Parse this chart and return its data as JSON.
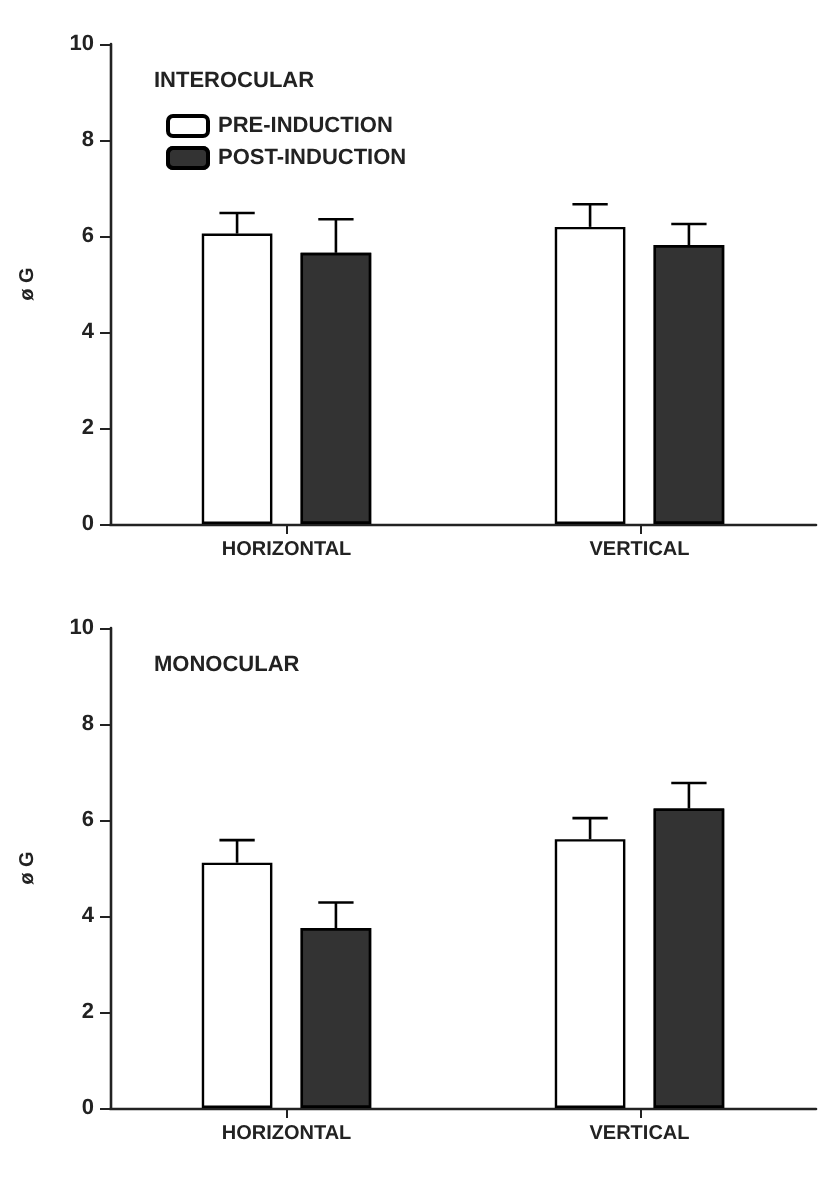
{
  "chart_data": [
    {
      "type": "bar",
      "title": "INTEROCULAR",
      "ylabel": "ø G",
      "categories": [
        "HORIZONTAL",
        "VERTICAL"
      ],
      "ylim": [
        0,
        10
      ],
      "yticks": [
        0,
        2,
        4,
        6,
        8,
        10
      ],
      "legend": "top left",
      "grid": false,
      "series": [
        {
          "name": "PRE-INDUCTION",
          "color": "#ffffff",
          "values": [
            6.05,
            6.19
          ],
          "errors": [
            [
              6.05,
              6.48
            ],
            [
              6.19,
              6.66
            ]
          ]
        },
        {
          "name": "POST-INDUCTION",
          "color": "#333333",
          "values": [
            5.65,
            5.81
          ],
          "errors": [
            [
              5.65,
              6.35
            ],
            [
              5.81,
              6.25
            ]
          ]
        }
      ]
    },
    {
      "type": "bar",
      "title": "MONOCULAR",
      "ylabel": "ø G",
      "categories": [
        "HORIZONTAL",
        "VERTICAL"
      ],
      "ylim": [
        0,
        10
      ],
      "yticks": [
        0,
        2,
        4,
        6,
        8,
        10
      ],
      "grid": false,
      "series": [
        {
          "color": "#ffffff",
          "values": [
            5.11,
            5.6
          ],
          "errors": [
            [
              5.11,
              5.58
            ],
            [
              5.6,
              6.04
            ]
          ]
        },
        {
          "color": "#333333",
          "values": [
            3.75,
            6.24
          ],
          "errors": [
            [
              3.75,
              4.28
            ],
            [
              6.24,
              6.77
            ]
          ]
        }
      ]
    }
  ]
}
